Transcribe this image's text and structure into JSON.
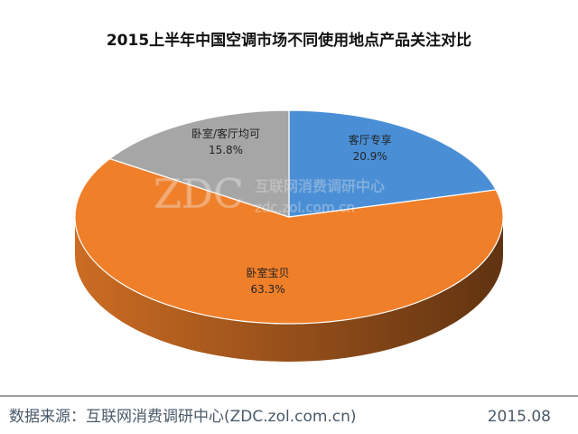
{
  "chart_data": {
    "type": "pie",
    "title": "2015上半年中国空调市场不同使用地点产品关注对比",
    "categories": [
      "客厅专享",
      "卧室宝贝",
      "卧室/客厅均可"
    ],
    "values": [
      20.9,
      63.3,
      15.8
    ],
    "value_labels": [
      "20.9%",
      "63.3%",
      "15.8%"
    ],
    "colors": [
      "#4a8fd6",
      "#f07f2a",
      "#a6a6a6"
    ],
    "watermark": {
      "logo": "ZDC",
      "name": "互联网消费调研中心",
      "url": "zdc.zol.com.cn"
    },
    "source": "数据来源：互联网消费调研中心(ZDC.zol.com.cn)",
    "date": "2015.08"
  }
}
